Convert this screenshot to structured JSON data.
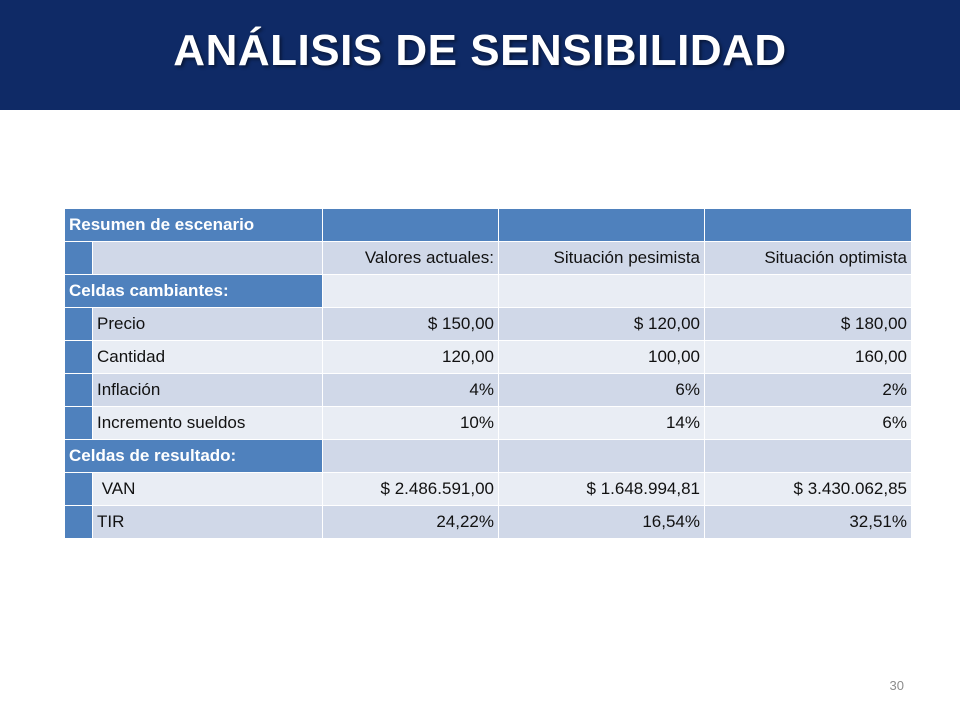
{
  "slide": {
    "title": "ANÁLISIS DE SENSIBILIDAD",
    "page_number": "30"
  },
  "table": {
    "summary_label": "Resumen de escenario",
    "columns": [
      "Valores actuales:",
      "Situación pesimista",
      "Situación optimista"
    ],
    "changing_label": "Celdas cambiantes:",
    "changing_rows": [
      {
        "label": "Precio",
        "values": [
          "$ 150,00",
          "$ 120,00",
          "$ 180,00"
        ]
      },
      {
        "label": "Cantidad",
        "values": [
          "120,00",
          "100,00",
          "160,00"
        ]
      },
      {
        "label": "Inflación",
        "values": [
          "4%",
          "6%",
          "2%"
        ]
      },
      {
        "label": "Incremento sueldos",
        "values": [
          "10%",
          "14%",
          "6%"
        ]
      }
    ],
    "result_label": "Celdas de resultado:",
    "result_rows": [
      {
        "label": " VAN",
        "values": [
          "$ 2.486.591,00",
          "$ 1.648.994,81",
          "$ 3.430.062,85"
        ]
      },
      {
        "label": "TIR",
        "values": [
          "24,22%",
          "16,54%",
          "32,51%"
        ]
      }
    ]
  },
  "colors": {
    "title_bar": "#0f2a66",
    "header_blue": "#4f81bd",
    "row_light": "#d0d8e8",
    "row_lighter": "#e9edf4"
  }
}
